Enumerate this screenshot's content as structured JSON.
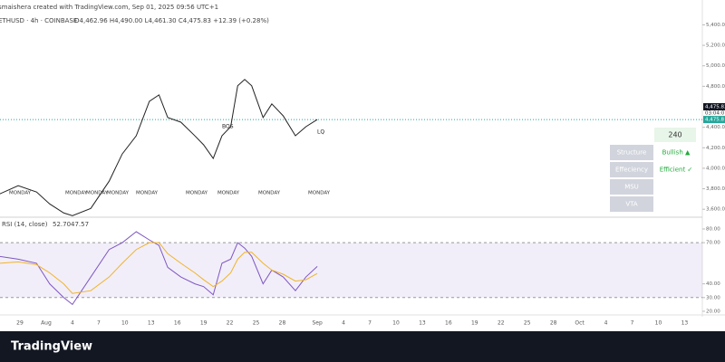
{
  "header": {
    "credit": "smaishera created with TradingView.com, Sep 01, 2025 09:56 UTC+1",
    "symbol": "ETHUSD · 4h · COINBASE",
    "ohlc": "O4,462.96 H4,490.00 L4,461.30 C4,475.83 +12.39 (+0.28%)"
  },
  "chart_data": [
    {
      "type": "line",
      "series": [
        {
          "name": "ETHUSD",
          "color": "#222222",
          "x": [
            -2.3,
            -0.2,
            1.9,
            3.4,
            5.0,
            6.0,
            8.1,
            10.2,
            11.7,
            13.3,
            14.8,
            15.9,
            16.9,
            18.4,
            20.0,
            21.0,
            22.1,
            23.1,
            24.1,
            24.9,
            25.7,
            26.5,
            27.8,
            28.8,
            30.1,
            31.5,
            32.7,
            34.0
          ],
          "values": [
            3750,
            3830,
            3768,
            3652,
            3564,
            3537,
            3608,
            3874,
            4140,
            4317,
            4654,
            4716,
            4495,
            4450,
            4317,
            4229,
            4096,
            4317,
            4406,
            4805,
            4867,
            4805,
            4495,
            4628,
            4512,
            4317,
            4406,
            4476
          ]
        }
      ],
      "xlim": [
        -2.28,
        78.03
      ],
      "ylim": [
        3540,
        5510
      ],
      "yticks": [
        {
          "value": 5400,
          "label": "5,400.00"
        },
        {
          "value": 5200,
          "label": "5,200.00"
        },
        {
          "value": 5000,
          "label": "5,000.00"
        },
        {
          "value": 4800,
          "label": "4,800.00"
        },
        {
          "value": 4400,
          "label": "4,400.00"
        },
        {
          "value": 4200,
          "label": "4,200.00"
        },
        {
          "value": 4000,
          "label": "4,000.00"
        },
        {
          "value": 3800,
          "label": "3,800.00"
        },
        {
          "value": 3600,
          "label": "3,600.00"
        }
      ],
      "last_price": 4475.83,
      "last_label": "4,475.83",
      "countdown": "03:04:0",
      "last_label_green": "4,475.8",
      "annotations": [
        "BOS",
        "LQ"
      ],
      "day_labels": [
        "MONDAY",
        "MONDAY",
        "MONDAY",
        "MONDAY",
        "MONDAY",
        "MONDAY",
        "MONDAY",
        "MONDAY",
        "MONDAY"
      ]
    },
    {
      "type": "line",
      "title": "RSI (14, close)",
      "series": [
        {
          "name": "52.70",
          "color": "#7e57c2",
          "x": [
            -2.3,
            -0.2,
            1.9,
            3.4,
            5.0,
            6.0,
            8.1,
            10.2,
            11.7,
            13.3,
            14.8,
            15.9,
            16.9,
            18.4,
            20.0,
            21.0,
            22.1,
            23.1,
            24.1,
            24.9,
            25.7,
            26.5,
            27.8,
            28.8,
            30.1,
            31.5,
            32.7,
            34.0
          ],
          "values": [
            60,
            58,
            55,
            40,
            30,
            25,
            45,
            65,
            70,
            78,
            72,
            68,
            52,
            45,
            40,
            38,
            32,
            55,
            58,
            70,
            66,
            60,
            40,
            50,
            45,
            35,
            45,
            52.7
          ]
        },
        {
          "name": "47.57",
          "color": "#f0b429",
          "x": [
            -2.3,
            -0.2,
            1.9,
            3.4,
            5.0,
            6.0,
            8.1,
            10.2,
            11.7,
            13.3,
            14.8,
            15.9,
            16.9,
            18.4,
            20.0,
            21.0,
            22.1,
            23.1,
            24.1,
            24.9,
            25.7,
            26.5,
            27.8,
            28.8,
            30.1,
            31.5,
            32.7,
            34.0
          ],
          "values": [
            55,
            56,
            54,
            48,
            40,
            33,
            35,
            45,
            55,
            65,
            70,
            70,
            62,
            55,
            48,
            43,
            38,
            42,
            48,
            58,
            63,
            63,
            55,
            50,
            47,
            42,
            43,
            47.57
          ]
        }
      ],
      "xlim": [
        -2.28,
        78.03
      ],
      "ylim": [
        19.3,
        86.6
      ],
      "yticks": [
        {
          "value": 80,
          "label": "80.00"
        },
        {
          "value": 70,
          "label": "70.00"
        },
        {
          "value": 40,
          "label": "40.00"
        },
        {
          "value": 30,
          "label": "30.00"
        },
        {
          "value": 20,
          "label": "20.00"
        }
      ],
      "bands": [
        30,
        70
      ],
      "xticks": [
        {
          "value": 0,
          "label": "29"
        },
        {
          "value": 3,
          "label": "Aug"
        },
        {
          "value": 6,
          "label": "4"
        },
        {
          "value": 9,
          "label": "7"
        },
        {
          "value": 12,
          "label": "10"
        },
        {
          "value": 15,
          "label": "13"
        },
        {
          "value": 18,
          "label": "16"
        },
        {
          "value": 21,
          "label": "19"
        },
        {
          "value": 24,
          "label": "22"
        },
        {
          "value": 27,
          "label": "25"
        },
        {
          "value": 30,
          "label": "28"
        },
        {
          "value": 34,
          "label": "Sep"
        },
        {
          "value": 37,
          "label": "4"
        },
        {
          "value": 40,
          "label": "7"
        },
        {
          "value": 43,
          "label": "10"
        },
        {
          "value": 46,
          "label": "13"
        },
        {
          "value": 49,
          "label": "16"
        },
        {
          "value": 52,
          "label": "19"
        },
        {
          "value": 55,
          "label": "22"
        },
        {
          "value": 58,
          "label": "25"
        },
        {
          "value": 61,
          "label": "28"
        },
        {
          "value": 64,
          "label": "Oct"
        },
        {
          "value": 67,
          "label": "4"
        },
        {
          "value": 70,
          "label": "7"
        },
        {
          "value": 73,
          "label": "10"
        },
        {
          "value": 76,
          "label": "13"
        }
      ]
    }
  ],
  "widget": {
    "timeframe": "240",
    "rows": [
      [
        "Structure",
        "Bullish ▲"
      ],
      [
        "Effeciency",
        "Efficient ✓"
      ],
      [
        "MSU",
        ""
      ],
      [
        "VTA",
        ""
      ]
    ]
  },
  "footer": {
    "brand": "TradingView"
  }
}
